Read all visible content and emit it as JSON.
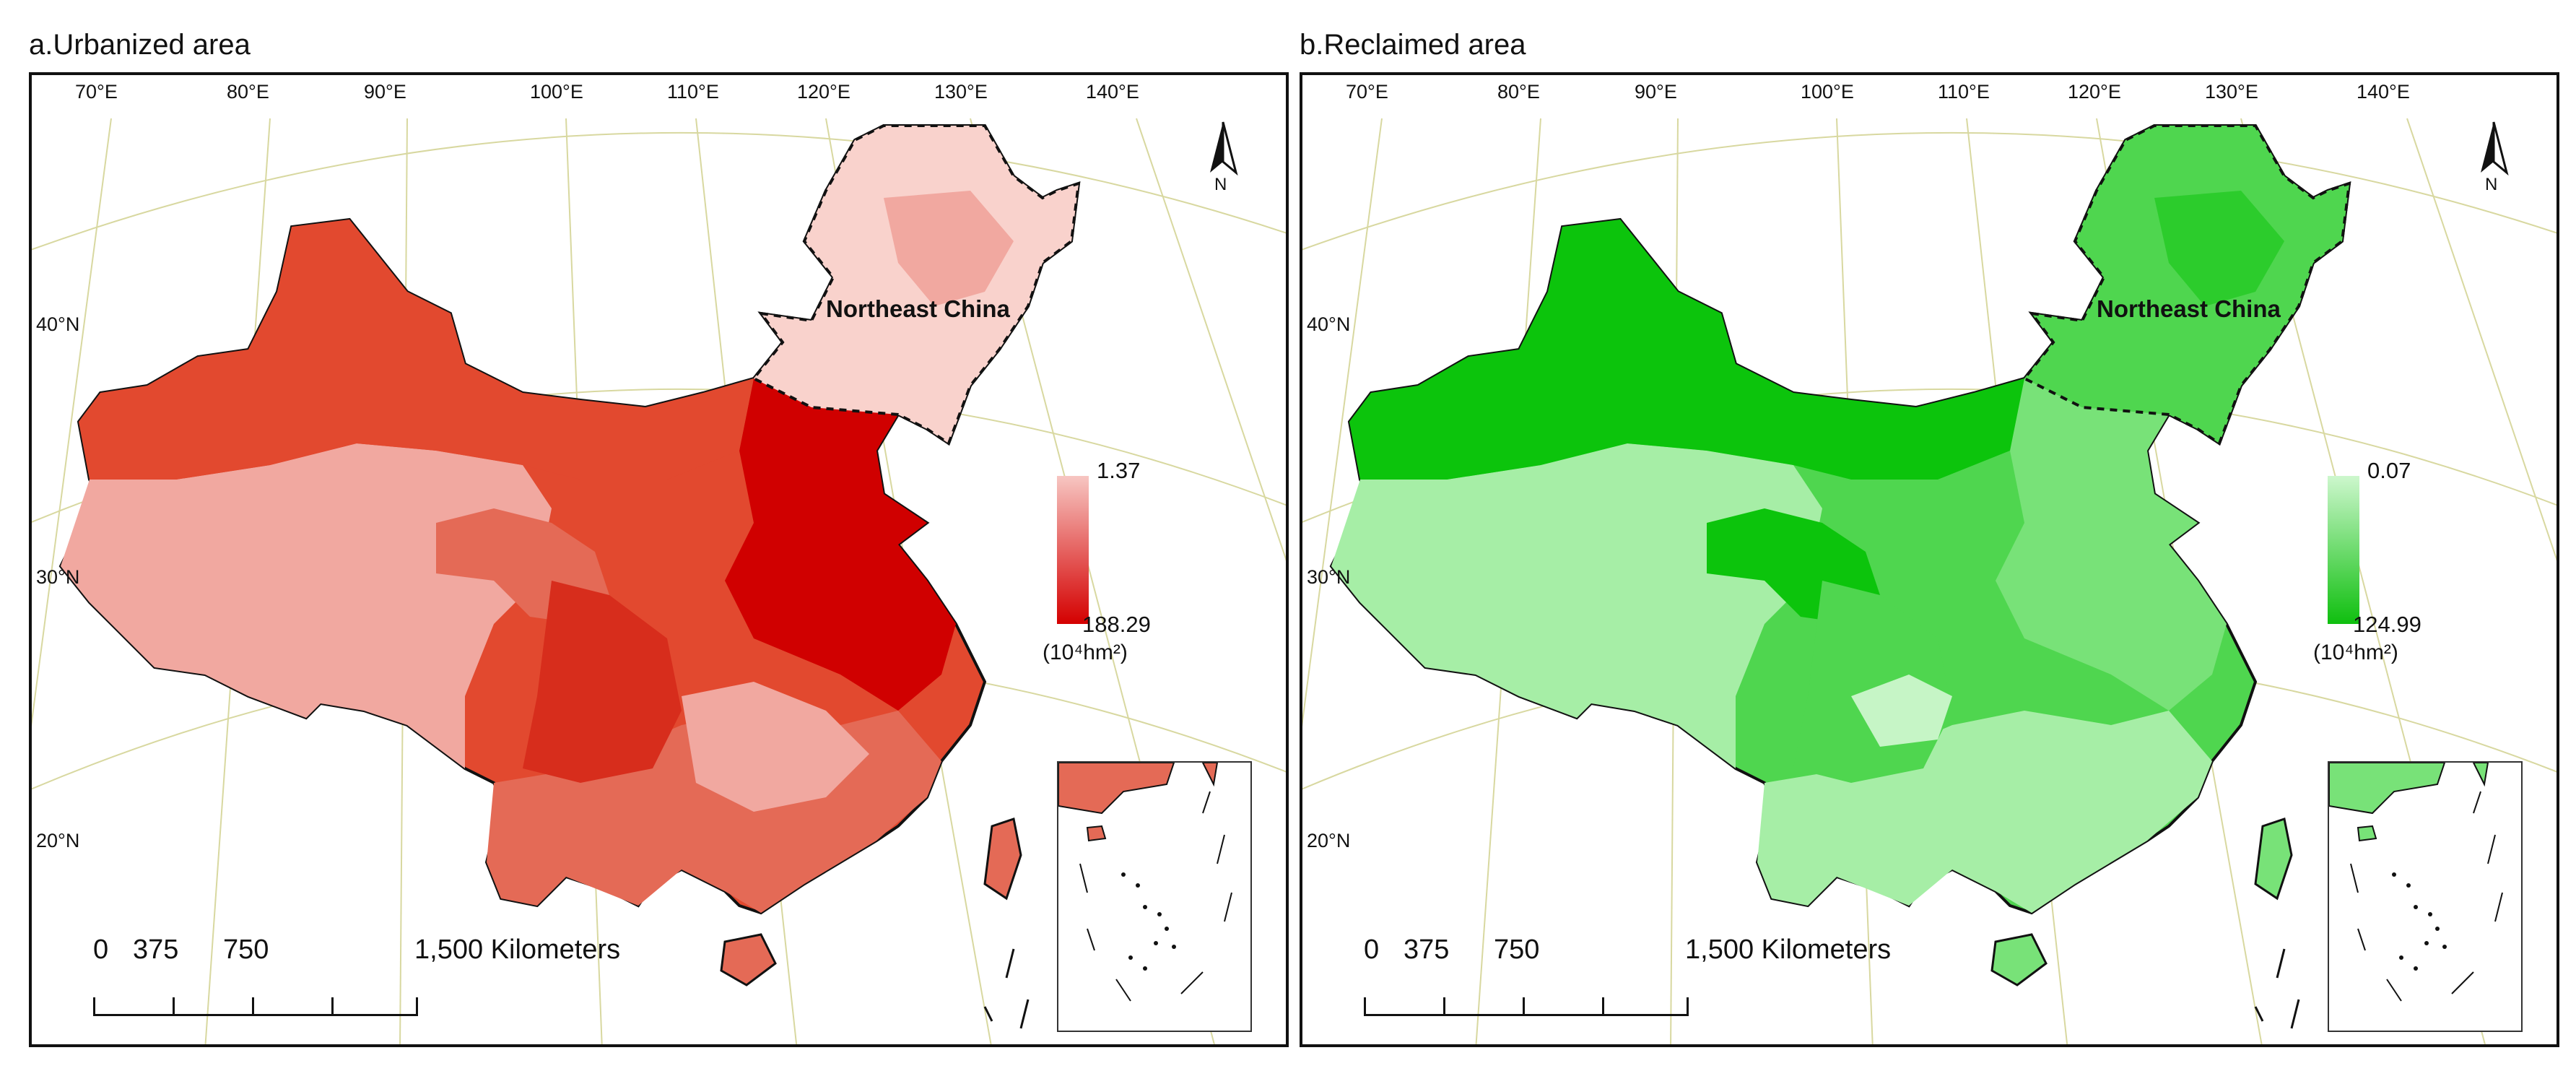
{
  "panels": [
    {
      "title": "a.Urbanized area",
      "ramp_light": "#f7c6c2",
      "ramp_dark": "#d40000",
      "colors": {
        "very_light": "#f9d2cc",
        "light": "#f1a8a0",
        "medium": "#e46a56",
        "medium_dark": "#e2492f",
        "dark": "#d72d1c",
        "darkest": "#d00000"
      },
      "region_label": "Northeast China",
      "legend": {
        "max": "1.37",
        "min": "188.29",
        "unit": "(10⁴hm²)"
      }
    },
    {
      "title": "b.Reclaimed area",
      "ramp_light": "#cdf7cd",
      "ramp_dark": "#0fbf0f",
      "colors": {
        "very_light": "#c6f5c6",
        "light": "#a6eea6",
        "medium": "#78e278",
        "medium_dark": "#4fd64f",
        "dark": "#2ccc2c",
        "darkest": "#0cc40c"
      },
      "region_label": "Northeast China",
      "legend": {
        "max": "0.07",
        "min": "124.99",
        "unit": "(10⁴hm²)"
      }
    }
  ],
  "graticule": {
    "lon_labels": [
      "70°E",
      "80°E",
      "90°E",
      "100°E",
      "110°E",
      "120°E",
      "130°E",
      "140°E"
    ],
    "lat_labels": [
      "40°N",
      "30°N",
      "20°N"
    ],
    "line_color": "#d8d8a0"
  },
  "scale_bar": {
    "labels": [
      "0",
      "375",
      "750",
      "1,500 Kilometers"
    ]
  },
  "north_arrow": {
    "label": "N"
  }
}
